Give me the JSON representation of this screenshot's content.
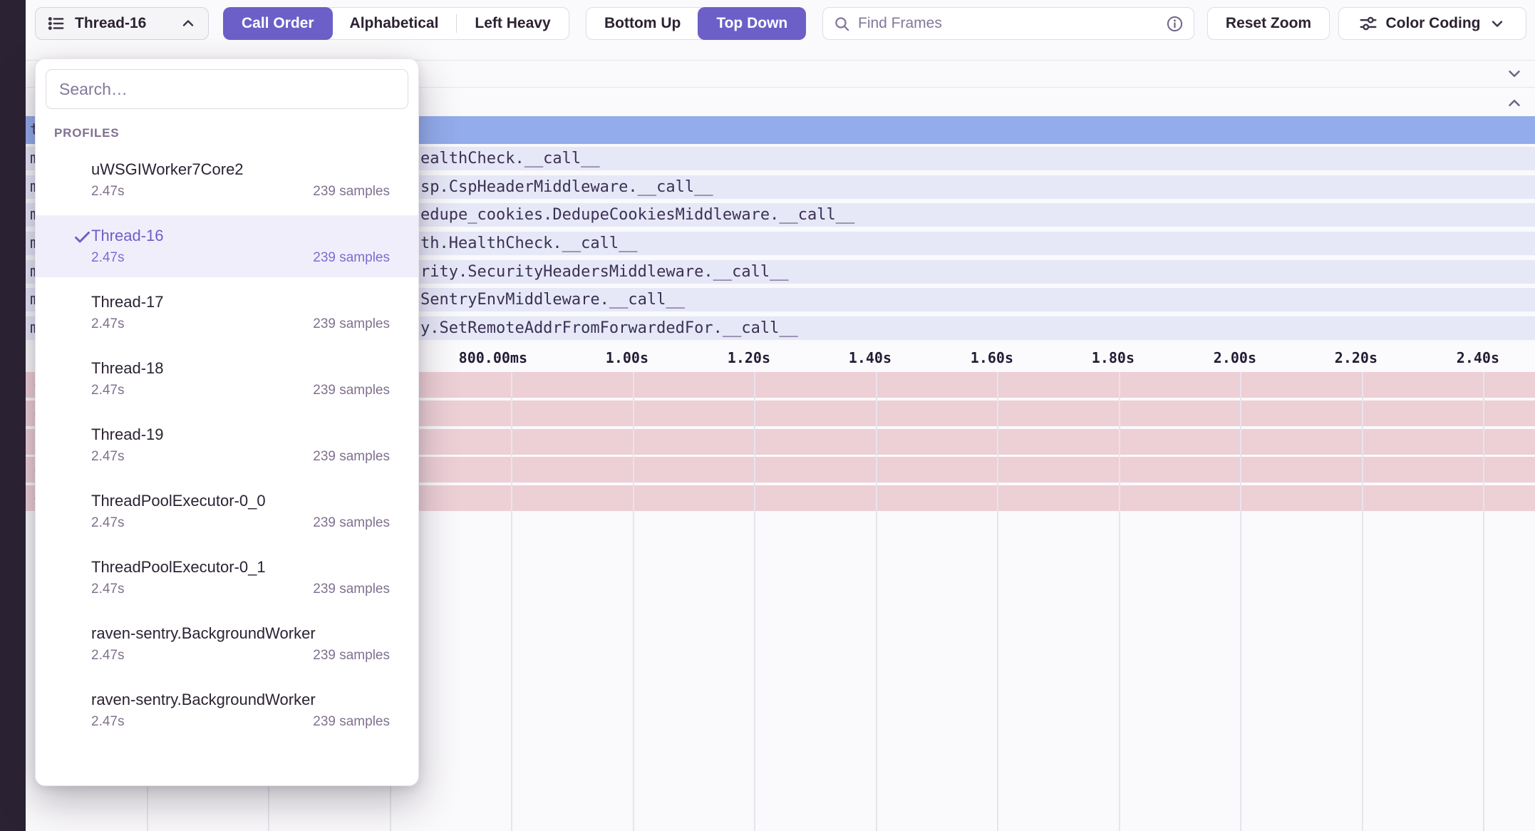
{
  "toolbar": {
    "thread_selector": {
      "label": "Thread-16"
    },
    "sort_options": [
      {
        "label": "Call Order",
        "active": true
      },
      {
        "label": "Alphabetical",
        "active": false
      },
      {
        "label": "Left Heavy",
        "active": false
      }
    ],
    "direction_options": [
      {
        "label": "Bottom Up",
        "active": false
      },
      {
        "label": "Top Down",
        "active": true
      }
    ],
    "search": {
      "placeholder": "Find Frames"
    },
    "reset_zoom_label": "Reset Zoom",
    "color_coding_label": "Color Coding"
  },
  "dropdown": {
    "search_placeholder": "Search…",
    "section_label": "PROFILES",
    "items": [
      {
        "name": "uWSGIWorker7Core2",
        "duration": "2.47s",
        "samples": "239 samples",
        "selected": false
      },
      {
        "name": "Thread-16",
        "duration": "2.47s",
        "samples": "239 samples",
        "selected": true
      },
      {
        "name": "Thread-17",
        "duration": "2.47s",
        "samples": "239 samples",
        "selected": false
      },
      {
        "name": "Thread-18",
        "duration": "2.47s",
        "samples": "239 samples",
        "selected": false
      },
      {
        "name": "Thread-19",
        "duration": "2.47s",
        "samples": "239 samples",
        "selected": false
      },
      {
        "name": "ThreadPoolExecutor-0_0",
        "duration": "2.47s",
        "samples": "239 samples",
        "selected": false
      },
      {
        "name": "ThreadPoolExecutor-0_1",
        "duration": "2.47s",
        "samples": "239 samples",
        "selected": false
      },
      {
        "name": "raven-sentry.BackgroundWorker",
        "duration": "2.47s",
        "samples": "239 samples",
        "selected": false
      },
      {
        "name": "raven-sentry.BackgroundWorker",
        "duration": "2.47s",
        "samples": "239 samples",
        "selected": false
      }
    ]
  },
  "flamegraph": {
    "rows": [
      {
        "edge": "t",
        "text": ""
      },
      {
        "edge": "m",
        "text": "ealthCheck.__call__"
      },
      {
        "edge": "m",
        "text": "sp.CspHeaderMiddleware.__call__"
      },
      {
        "edge": "m",
        "text": "edupe_cookies.DedupeCookiesMiddleware.__call__"
      },
      {
        "edge": "m",
        "text": "th.HealthCheck.__call__"
      },
      {
        "edge": "m",
        "text": "rity.SecurityHeadersMiddleware.__call__"
      },
      {
        "edge": "m",
        "text": "SentryEnvMiddleware.__call__"
      },
      {
        "edge": "m",
        "text": "y.SetRemoteAddrFromForwardedFor.__call__"
      }
    ],
    "axis_ticks": [
      "800.00ms",
      "1.00s",
      "1.20s",
      "1.40s",
      "1.60s",
      "1.80s",
      "2.00s",
      "2.20s",
      "2.40s"
    ],
    "pink_edges": [
      "-",
      "-",
      "|",
      "-",
      "-"
    ]
  },
  "colors": {
    "accent_purple": "#6C5FC7",
    "selected_frame_blue": "#93ACEC",
    "frame_row_lavender": "#E6E8F8",
    "selection_pink": "#EDCFD6",
    "sidebar_dark": "#2B2233"
  }
}
